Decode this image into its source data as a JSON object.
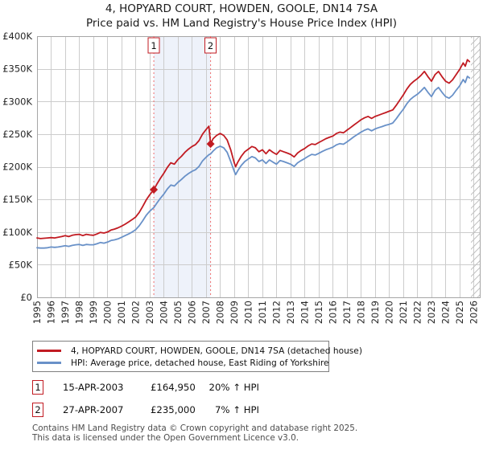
{
  "header": {
    "title": "4, HOPYARD COURT, HOWDEN, GOOLE, DN14 7SA",
    "subtitle": "Price paid vs. HM Land Registry's House Price Index (HPI)"
  },
  "colors": {
    "red": "#c11b22",
    "blue": "#6991c8",
    "dashed_marker": "#f06e6e",
    "shaded_band": "#eef2fa",
    "grid": "#cccccc",
    "plot_border": "#a6a6a6",
    "hatch": "#c0c0c0"
  },
  "chart_data": {
    "type": "line",
    "title": "4, HOPYARD COURT, HOWDEN, GOOLE, DN14 7SA — Price paid vs. HPI",
    "xlabel": "",
    "ylabel": "",
    "x_axis": {
      "min": 1995,
      "max": 2026.43,
      "tick_years": [
        1995,
        1996,
        1997,
        1998,
        1999,
        2000,
        2001,
        2002,
        2003,
        2004,
        2005,
        2006,
        2007,
        2008,
        2009,
        2010,
        2011,
        2012,
        2013,
        2014,
        2015,
        2016,
        2017,
        2018,
        2019,
        2020,
        2021,
        2022,
        2023,
        2024,
        2025,
        2026
      ]
    },
    "y_axis": {
      "min": 0,
      "max": 400000,
      "tick_step": 50000,
      "tick_labels": [
        "£0",
        "£50K",
        "£100K",
        "£150K",
        "£200K",
        "£250K",
        "£300K",
        "£350K",
        "£400K"
      ]
    },
    "grid": true,
    "legend_position": "bottom",
    "shaded_region": {
      "from_year": 2003.29,
      "to_year": 2007.32
    },
    "hatch_region": {
      "from_year": 2025.8,
      "to_year": 2026.43
    },
    "sale_markers": [
      {
        "label": "1",
        "year": 2003.29,
        "value": 164950
      },
      {
        "label": "2",
        "year": 2007.32,
        "value": 235000
      }
    ],
    "series": [
      {
        "name": "4, HOPYARD COURT, HOWDEN, GOOLE, DN14 7SA (detached house)",
        "color_key": "red",
        "points": [
          [
            1995.0,
            91000
          ],
          [
            1995.25,
            90000
          ],
          [
            1995.5,
            90500
          ],
          [
            1995.75,
            91000
          ],
          [
            1996.0,
            91500
          ],
          [
            1996.25,
            91000
          ],
          [
            1996.5,
            92000
          ],
          [
            1996.75,
            93000
          ],
          [
            1997.0,
            94500
          ],
          [
            1997.25,
            93000
          ],
          [
            1997.5,
            95000
          ],
          [
            1997.75,
            96000
          ],
          [
            1998.0,
            96500
          ],
          [
            1998.25,
            94500
          ],
          [
            1998.5,
            96500
          ],
          [
            1998.75,
            95500
          ],
          [
            1999.0,
            95000
          ],
          [
            1999.25,
            97000
          ],
          [
            1999.5,
            99500
          ],
          [
            1999.75,
            98500
          ],
          [
            2000.0,
            100000
          ],
          [
            2000.25,
            103000
          ],
          [
            2000.5,
            104500
          ],
          [
            2000.75,
            106500
          ],
          [
            2001.0,
            109000
          ],
          [
            2001.25,
            112000
          ],
          [
            2001.5,
            115500
          ],
          [
            2001.75,
            119000
          ],
          [
            2002.0,
            123000
          ],
          [
            2002.25,
            130000
          ],
          [
            2002.5,
            139000
          ],
          [
            2002.75,
            149000
          ],
          [
            2003.0,
            157000
          ],
          [
            2003.29,
            164950
          ],
          [
            2003.5,
            173000
          ],
          [
            2003.75,
            182000
          ],
          [
            2004.0,
            190000
          ],
          [
            2004.25,
            199000
          ],
          [
            2004.5,
            206000
          ],
          [
            2004.75,
            204000
          ],
          [
            2005.0,
            211000
          ],
          [
            2005.25,
            216000
          ],
          [
            2005.5,
            222000
          ],
          [
            2005.75,
            227000
          ],
          [
            2006.0,
            231000
          ],
          [
            2006.25,
            234000
          ],
          [
            2006.5,
            240000
          ],
          [
            2006.75,
            250000
          ],
          [
            2007.0,
            257000
          ],
          [
            2007.2,
            262000
          ],
          [
            2007.32,
            235000
          ],
          [
            2007.5,
            243000
          ],
          [
            2007.75,
            248000
          ],
          [
            2008.0,
            251000
          ],
          [
            2008.25,
            248000
          ],
          [
            2008.5,
            241000
          ],
          [
            2008.75,
            226000
          ],
          [
            2009.0,
            206000
          ],
          [
            2009.1,
            200000
          ],
          [
            2009.25,
            207000
          ],
          [
            2009.5,
            216000
          ],
          [
            2009.75,
            223000
          ],
          [
            2010.0,
            227000
          ],
          [
            2010.25,
            231000
          ],
          [
            2010.5,
            229000
          ],
          [
            2010.75,
            223000
          ],
          [
            2011.0,
            226000
          ],
          [
            2011.25,
            220000
          ],
          [
            2011.5,
            226000
          ],
          [
            2011.75,
            222000
          ],
          [
            2012.0,
            219000
          ],
          [
            2012.25,
            225000
          ],
          [
            2012.5,
            223000
          ],
          [
            2012.75,
            221000
          ],
          [
            2013.0,
            219000
          ],
          [
            2013.25,
            215000
          ],
          [
            2013.5,
            221000
          ],
          [
            2013.75,
            225000
          ],
          [
            2014.0,
            228000
          ],
          [
            2014.25,
            232000
          ],
          [
            2014.5,
            235000
          ],
          [
            2014.75,
            234000
          ],
          [
            2015.0,
            237000
          ],
          [
            2015.25,
            240000
          ],
          [
            2015.5,
            243000
          ],
          [
            2015.75,
            245000
          ],
          [
            2016.0,
            247000
          ],
          [
            2016.25,
            251000
          ],
          [
            2016.5,
            253000
          ],
          [
            2016.75,
            252000
          ],
          [
            2017.0,
            256000
          ],
          [
            2017.25,
            260000
          ],
          [
            2017.5,
            264000
          ],
          [
            2017.75,
            268000
          ],
          [
            2018.0,
            272000
          ],
          [
            2018.25,
            275000
          ],
          [
            2018.5,
            277000
          ],
          [
            2018.75,
            274000
          ],
          [
            2019.0,
            277000
          ],
          [
            2019.25,
            279000
          ],
          [
            2019.5,
            281000
          ],
          [
            2019.75,
            283000
          ],
          [
            2020.0,
            285000
          ],
          [
            2020.25,
            287000
          ],
          [
            2020.5,
            294000
          ],
          [
            2020.75,
            302000
          ],
          [
            2021.0,
            310000
          ],
          [
            2021.25,
            319000
          ],
          [
            2021.5,
            326000
          ],
          [
            2021.75,
            331000
          ],
          [
            2022.0,
            335000
          ],
          [
            2022.25,
            340000
          ],
          [
            2022.5,
            346000
          ],
          [
            2022.75,
            338000
          ],
          [
            2023.0,
            331000
          ],
          [
            2023.25,
            341000
          ],
          [
            2023.5,
            346000
          ],
          [
            2023.75,
            338000
          ],
          [
            2024.0,
            331000
          ],
          [
            2024.25,
            328000
          ],
          [
            2024.5,
            333000
          ],
          [
            2024.75,
            341000
          ],
          [
            2025.0,
            349000
          ],
          [
            2025.25,
            359000
          ],
          [
            2025.4,
            354000
          ],
          [
            2025.55,
            364000
          ],
          [
            2025.7,
            361000
          ]
        ]
      },
      {
        "name": "HPI: Average price, detached house, East Riding of Yorkshire",
        "color_key": "blue",
        "points": [
          [
            1995.0,
            76000
          ],
          [
            1995.25,
            75500
          ],
          [
            1995.5,
            75500
          ],
          [
            1995.75,
            76000
          ],
          [
            1996.0,
            77000
          ],
          [
            1996.25,
            76500
          ],
          [
            1996.5,
            77000
          ],
          [
            1996.75,
            78000
          ],
          [
            1997.0,
            79000
          ],
          [
            1997.25,
            78000
          ],
          [
            1997.5,
            79500
          ],
          [
            1997.75,
            80500
          ],
          [
            1998.0,
            81000
          ],
          [
            1998.25,
            79500
          ],
          [
            1998.5,
            81000
          ],
          [
            1998.75,
            80500
          ],
          [
            1999.0,
            80500
          ],
          [
            1999.25,
            82000
          ],
          [
            1999.5,
            84000
          ],
          [
            1999.75,
            83000
          ],
          [
            2000.0,
            84500
          ],
          [
            2000.25,
            87000
          ],
          [
            2000.5,
            88000
          ],
          [
            2000.75,
            89500
          ],
          [
            2001.0,
            92000
          ],
          [
            2001.25,
            94500
          ],
          [
            2001.5,
            97000
          ],
          [
            2001.75,
            100000
          ],
          [
            2002.0,
            103500
          ],
          [
            2002.25,
            109500
          ],
          [
            2002.5,
            117000
          ],
          [
            2002.75,
            125500
          ],
          [
            2003.0,
            132000
          ],
          [
            2003.29,
            137500
          ],
          [
            2003.5,
            144000
          ],
          [
            2003.75,
            151500
          ],
          [
            2004.0,
            158000
          ],
          [
            2004.25,
            166000
          ],
          [
            2004.5,
            172000
          ],
          [
            2004.75,
            170500
          ],
          [
            2005.0,
            176000
          ],
          [
            2005.25,
            180500
          ],
          [
            2005.5,
            185500
          ],
          [
            2005.75,
            189500
          ],
          [
            2006.0,
            193000
          ],
          [
            2006.25,
            195500
          ],
          [
            2006.5,
            200500
          ],
          [
            2006.75,
            209000
          ],
          [
            2007.0,
            214500
          ],
          [
            2007.2,
            218500
          ],
          [
            2007.32,
            219600
          ],
          [
            2007.5,
            224000
          ],
          [
            2007.75,
            229000
          ],
          [
            2008.0,
            231500
          ],
          [
            2008.25,
            229000
          ],
          [
            2008.5,
            222000
          ],
          [
            2008.75,
            208000
          ],
          [
            2009.0,
            193000
          ],
          [
            2009.1,
            188000
          ],
          [
            2009.25,
            194000
          ],
          [
            2009.5,
            202000
          ],
          [
            2009.75,
            208000
          ],
          [
            2010.0,
            212000
          ],
          [
            2010.25,
            215500
          ],
          [
            2010.5,
            213500
          ],
          [
            2010.75,
            208000
          ],
          [
            2011.0,
            210500
          ],
          [
            2011.25,
            205000
          ],
          [
            2011.5,
            210500
          ],
          [
            2011.75,
            207000
          ],
          [
            2012.0,
            204000
          ],
          [
            2012.25,
            209500
          ],
          [
            2012.5,
            208000
          ],
          [
            2012.75,
            206000
          ],
          [
            2013.0,
            204000
          ],
          [
            2013.25,
            200500
          ],
          [
            2013.5,
            206000
          ],
          [
            2013.75,
            209500
          ],
          [
            2014.0,
            212500
          ],
          [
            2014.25,
            216000
          ],
          [
            2014.5,
            219000
          ],
          [
            2014.75,
            218000
          ],
          [
            2015.0,
            220500
          ],
          [
            2015.25,
            223500
          ],
          [
            2015.5,
            226000
          ],
          [
            2015.75,
            228000
          ],
          [
            2016.0,
            230000
          ],
          [
            2016.25,
            233500
          ],
          [
            2016.5,
            235500
          ],
          [
            2016.75,
            234500
          ],
          [
            2017.0,
            238000
          ],
          [
            2017.25,
            242000
          ],
          [
            2017.5,
            246000
          ],
          [
            2017.75,
            249500
          ],
          [
            2018.0,
            253000
          ],
          [
            2018.25,
            256000
          ],
          [
            2018.5,
            258000
          ],
          [
            2018.75,
            255000
          ],
          [
            2019.0,
            258000
          ],
          [
            2019.25,
            260000
          ],
          [
            2019.5,
            261500
          ],
          [
            2019.75,
            263500
          ],
          [
            2020.0,
            265000
          ],
          [
            2020.25,
            267000
          ],
          [
            2020.5,
            273500
          ],
          [
            2020.75,
            281000
          ],
          [
            2021.0,
            288000
          ],
          [
            2021.25,
            296500
          ],
          [
            2021.5,
            303000
          ],
          [
            2021.75,
            307500
          ],
          [
            2022.0,
            311000
          ],
          [
            2022.25,
            316000
          ],
          [
            2022.5,
            321500
          ],
          [
            2022.75,
            314000
          ],
          [
            2023.0,
            307500
          ],
          [
            2023.25,
            317000
          ],
          [
            2023.5,
            321500
          ],
          [
            2023.75,
            314000
          ],
          [
            2024.0,
            307500
          ],
          [
            2024.25,
            305000
          ],
          [
            2024.5,
            309500
          ],
          [
            2024.75,
            317000
          ],
          [
            2025.0,
            324000
          ],
          [
            2025.25,
            333500
          ],
          [
            2025.4,
            329000
          ],
          [
            2025.55,
            338500
          ],
          [
            2025.7,
            336000
          ]
        ]
      }
    ]
  },
  "legend": {
    "items": [
      {
        "label": "4, HOPYARD COURT, HOWDEN, GOOLE, DN14 7SA (detached house)"
      },
      {
        "label": "HPI: Average price, detached house, East Riding of Yorkshire"
      }
    ]
  },
  "transactions": [
    {
      "num": "1",
      "date": "15-APR-2003",
      "price": "£164,950",
      "hpi_diff": "20% ↑ HPI"
    },
    {
      "num": "2",
      "date": "27-APR-2007",
      "price": "£235,000",
      "hpi_diff": "7% ↑ HPI"
    }
  ],
  "footer": {
    "line1": "Contains HM Land Registry data © Crown copyright and database right 2025.",
    "line2": "This data is licensed under the Open Government Licence v3.0."
  }
}
